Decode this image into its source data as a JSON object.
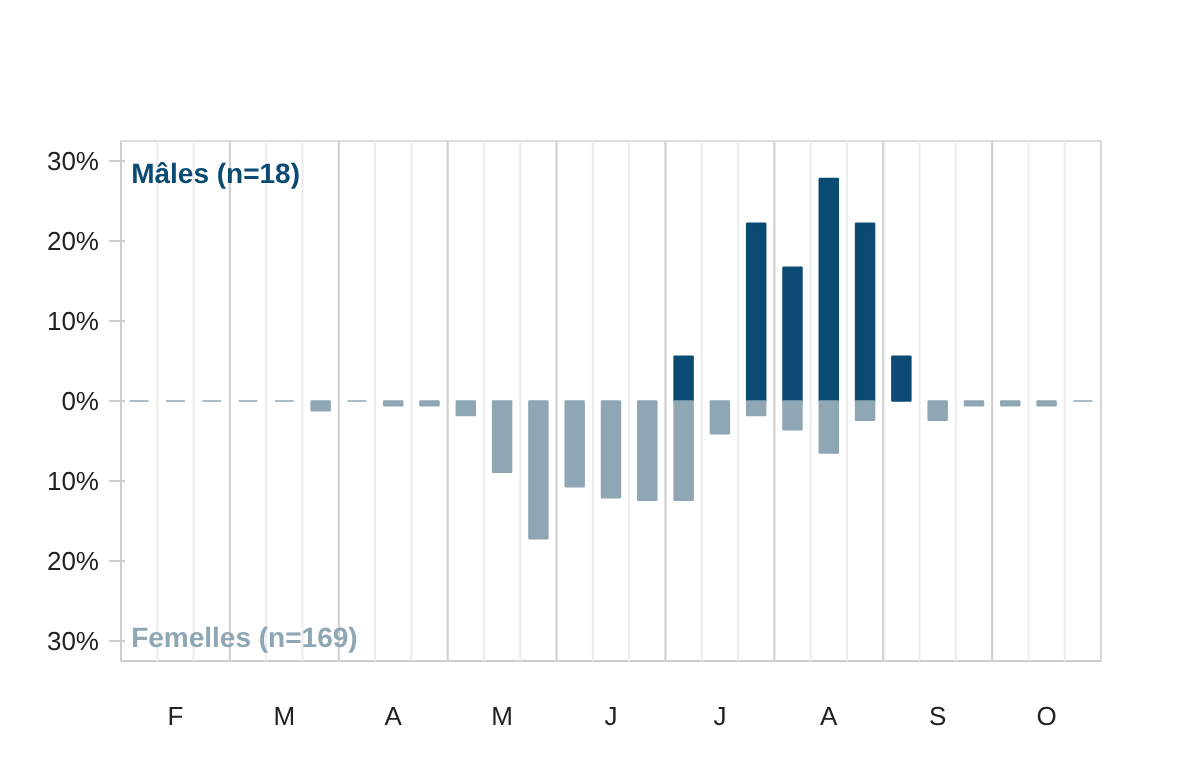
{
  "chart_data": {
    "type": "bar",
    "categories": [
      null,
      "F",
      null,
      null,
      "M",
      null,
      null,
      "A",
      null,
      null,
      "M",
      null,
      null,
      "J",
      null,
      null,
      "J",
      null,
      null,
      "A",
      null,
      null,
      "S",
      null,
      null,
      "O",
      null
    ],
    "series": [
      {
        "name": "Mâles (n=18)",
        "color": "#0b4a72",
        "values": [
          null,
          null,
          null,
          null,
          null,
          null,
          null,
          null,
          null,
          null,
          null,
          null,
          null,
          null,
          null,
          5.6,
          null,
          22.2,
          16.7,
          27.8,
          22.2,
          5.6,
          null,
          null,
          null,
          null,
          null
        ]
      },
      {
        "name": "Femelles (n=169)",
        "color": "#8fa6b4",
        "values": [
          0,
          0,
          0,
          0,
          0,
          -1.2,
          0,
          -0.6,
          -0.6,
          -1.8,
          -8.9,
          -17.2,
          -10.7,
          -12.1,
          -12.4,
          -12.4,
          -4.1,
          -1.8,
          -3.6,
          -6.5,
          -2.4,
          null,
          -2.4,
          -0.6,
          -0.6,
          -0.6,
          0
        ]
      }
    ],
    "ylim": [
      -32.5,
      32.5
    ],
    "yticks": [
      {
        "value": 30,
        "label": "30%"
      },
      {
        "value": 20,
        "label": "20%"
      },
      {
        "value": 10,
        "label": "10%"
      },
      {
        "value": 0,
        "label": "0%"
      },
      {
        "value": -10,
        "label": "10%"
      },
      {
        "value": -20,
        "label": "20%"
      },
      {
        "value": -30,
        "label": "30%"
      }
    ],
    "grid": "x"
  }
}
